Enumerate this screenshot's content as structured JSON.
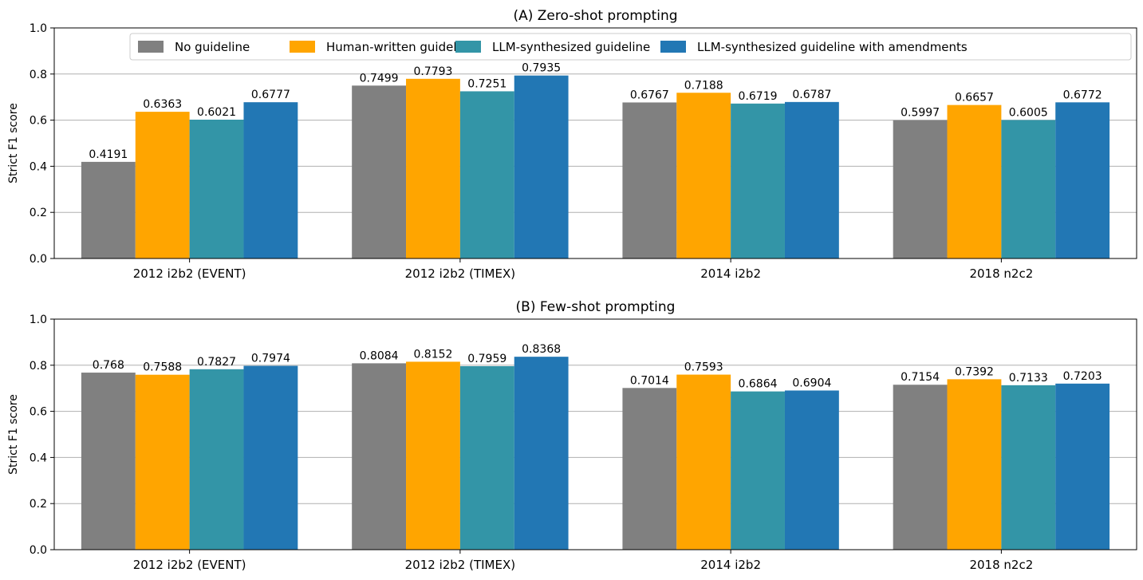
{
  "chart_data": [
    {
      "type": "bar",
      "title": "(A) Zero-shot prompting",
      "xlabel": "",
      "ylabel": "Strict F1 score",
      "ylim": [
        0,
        1.0
      ],
      "yticks": [
        "0.0",
        "0.2",
        "0.4",
        "0.6",
        "0.8",
        "1.0"
      ],
      "grid": "horizontal",
      "legend_position": "top-right",
      "categories": [
        "2012 i2b2 (EVENT)",
        "2012 i2b2 (TIMEX)",
        "2014 i2b2",
        "2018 n2c2"
      ],
      "series": [
        {
          "name": "No guideline",
          "color": "#808080",
          "values": [
            0.4191,
            0.7499,
            0.6767,
            0.5997
          ],
          "labels": [
            "0.4191",
            "0.7499",
            "0.6767",
            "0.5997"
          ]
        },
        {
          "name": "Human-written guideline",
          "color": "#FFA500",
          "values": [
            0.6363,
            0.7793,
            0.7188,
            0.6657
          ],
          "labels": [
            "0.6363",
            "0.7793",
            "0.7188",
            "0.6657"
          ]
        },
        {
          "name": "LLM-synthesized guideline",
          "color": "#3395A7",
          "values": [
            0.6021,
            0.7251,
            0.6719,
            0.6005
          ],
          "labels": [
            "0.6021",
            "0.7251",
            "0.6719",
            "0.6005"
          ]
        },
        {
          "name": "LLM-synthesized guideline with amendments",
          "color": "#2277B4",
          "values": [
            0.6777,
            0.7935,
            0.6787,
            0.6772
          ],
          "labels": [
            "0.6777",
            "0.7935",
            "0.6787",
            "0.6772"
          ]
        }
      ]
    },
    {
      "type": "bar",
      "title": "(B) Few-shot prompting",
      "xlabel": "",
      "ylabel": "Strict F1 score",
      "ylim": [
        0,
        1.0
      ],
      "yticks": [
        "0.0",
        "0.2",
        "0.4",
        "0.6",
        "0.8",
        "1.0"
      ],
      "grid": "horizontal",
      "categories": [
        "2012 i2b2 (EVENT)",
        "2012 i2b2 (TIMEX)",
        "2014 i2b2",
        "2018 n2c2"
      ],
      "series": [
        {
          "name": "No guideline",
          "color": "#808080",
          "values": [
            0.768,
            0.8084,
            0.7014,
            0.7154
          ],
          "labels": [
            "0.768",
            "0.8084",
            "0.7014",
            "0.7154"
          ]
        },
        {
          "name": "Human-written guideline",
          "color": "#FFA500",
          "values": [
            0.7588,
            0.8152,
            0.7593,
            0.7392
          ],
          "labels": [
            "0.7588",
            "0.8152",
            "0.7593",
            "0.7392"
          ]
        },
        {
          "name": "LLM-synthesized guideline",
          "color": "#3395A7",
          "values": [
            0.7827,
            0.7959,
            0.6864,
            0.7133
          ],
          "labels": [
            "0.7827",
            "0.7959",
            "0.6864",
            "0.7133"
          ]
        },
        {
          "name": "LLM-synthesized guideline with amendments",
          "color": "#2277B4",
          "values": [
            0.7974,
            0.8368,
            0.6904,
            0.7203
          ],
          "labels": [
            "0.7974",
            "0.8368",
            "0.6904",
            "0.7203"
          ]
        }
      ]
    }
  ]
}
